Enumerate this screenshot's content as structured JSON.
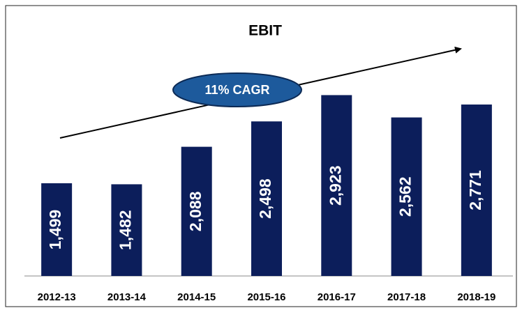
{
  "chart_data": {
    "type": "bar",
    "title": "EBIT",
    "categories": [
      "2012-13",
      "2013-14",
      "2014-15",
      "2015-16",
      "2016-17",
      "2017-18",
      "2018-19"
    ],
    "values": [
      1499,
      1482,
      2088,
      2498,
      2923,
      2562,
      2771
    ],
    "value_labels": [
      "1,499",
      "1,482",
      "2,088",
      "2,498",
      "2,923",
      "2,562",
      "2,771"
    ],
    "color": "#0c1e5b",
    "ylim": [
      0,
      3300
    ],
    "annotation": "11% CAGR"
  }
}
